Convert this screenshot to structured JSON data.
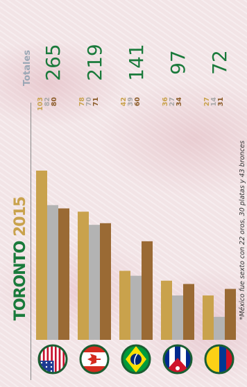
{
  "title_parts": {
    "a": "TORONTO ",
    "b": "2015"
  },
  "totals_label": "Totales",
  "footnote": "*México fue sexto con 22 oros, 30 platas y 43 bronces",
  "colors": {
    "gold": "#c9a24c",
    "silver": "#b3b3b3",
    "bronze": "#9a6a34",
    "title": "#1a7a3b",
    "accent": "#c9a24c"
  },
  "chart_data": {
    "type": "bar",
    "title": "TORONTO 2015",
    "categories": [
      "Estados Unidos",
      "Canadá",
      "Brasil",
      "Cuba",
      "Colombia"
    ],
    "series": [
      {
        "values": [
          103,
          78,
          42,
          36,
          27
        ]
      },
      {
        "values": [
          82,
          70,
          39,
          27,
          14
        ]
      },
      {
        "values": [
          80,
          71,
          60,
          34,
          31
        ]
      }
    ],
    "totals": [
      265,
      219,
      141,
      97,
      72
    ],
    "orientation": "vertical-bars-rotated",
    "grid": false
  },
  "flags": [
    "usa-flag-icon",
    "canada-flag-icon",
    "brazil-flag-icon",
    "cuba-flag-icon",
    "colombia-flag-icon"
  ]
}
